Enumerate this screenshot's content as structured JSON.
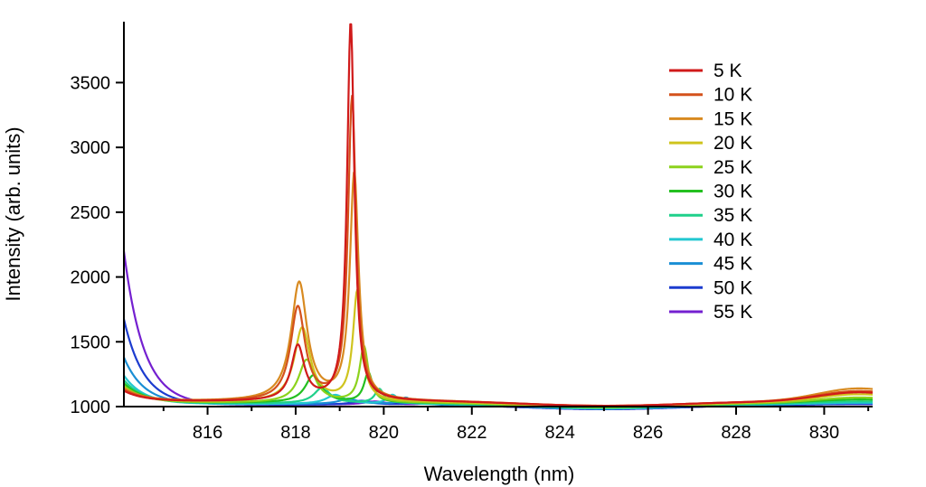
{
  "chart_data": {
    "type": "line",
    "xlabel": "Wavelength (nm)",
    "ylabel": "Intensity (arb. units)",
    "xlim": [
      814.1,
      831.1
    ],
    "ylim": [
      1000,
      3970
    ],
    "xticks": [
      816,
      818,
      820,
      822,
      824,
      826,
      828,
      830
    ],
    "yticks": [
      1000,
      1500,
      2000,
      2500,
      3000,
      3500
    ],
    "grid": false,
    "legend_position": "top-right",
    "series": [
      {
        "name": "5 K",
        "color": "#d01a1a",
        "baseline": 1040,
        "rise_amp": 80,
        "peak1": {
          "x": 818.05,
          "amp": 420,
          "w": 0.18
        },
        "peak2": {
          "x": 819.25,
          "amp": 2930,
          "w": 0.1
        },
        "tail_amp": 70
      },
      {
        "name": "10 K",
        "color": "#d4521c",
        "baseline": 1040,
        "rise_amp": 90,
        "peak1": {
          "x": 818.05,
          "amp": 720,
          "w": 0.2
        },
        "peak2": {
          "x": 819.28,
          "amp": 2340,
          "w": 0.11
        },
        "tail_amp": 80
      },
      {
        "name": "15 K",
        "color": "#d88a20",
        "baseline": 1040,
        "rise_amp": 100,
        "peak1": {
          "x": 818.08,
          "amp": 910,
          "w": 0.22
        },
        "peak2": {
          "x": 819.33,
          "amp": 1750,
          "w": 0.12
        },
        "tail_amp": 100
      },
      {
        "name": "20 K",
        "color": "#cfc41e",
        "baseline": 1035,
        "rise_amp": 110,
        "peak1": {
          "x": 818.15,
          "amp": 570,
          "w": 0.22
        },
        "peak2": {
          "x": 819.4,
          "amp": 850,
          "w": 0.12
        },
        "tail_amp": 60
      },
      {
        "name": "25 K",
        "color": "#8cd21c",
        "baseline": 1030,
        "rise_amp": 130,
        "peak1": {
          "x": 818.25,
          "amp": 330,
          "w": 0.22
        },
        "peak2": {
          "x": 819.55,
          "amp": 430,
          "w": 0.12
        },
        "tail_amp": 40
      },
      {
        "name": "30 K",
        "color": "#24c020",
        "baseline": 1030,
        "rise_amp": 150,
        "peak1": {
          "x": 818.4,
          "amp": 210,
          "w": 0.22
        },
        "peak2": {
          "x": 819.65,
          "amp": 230,
          "w": 0.12
        },
        "tail_amp": 25
      },
      {
        "name": "35 K",
        "color": "#1fd08a",
        "baseline": 1025,
        "rise_amp": 180,
        "peak1": {
          "x": 818.6,
          "amp": 120,
          "w": 0.22
        },
        "peak2": {
          "x": 819.9,
          "amp": 110,
          "w": 0.12
        },
        "tail_amp": 15
      },
      {
        "name": "40 K",
        "color": "#22c8d0",
        "baseline": 1020,
        "rise_amp": 220,
        "peak1": {
          "x": 818.9,
          "amp": 70,
          "w": 0.25
        },
        "peak2": {
          "x": 820.2,
          "amp": 70,
          "w": 0.15
        },
        "tail_amp": 10
      },
      {
        "name": "45 K",
        "color": "#1a8ed4",
        "baseline": 1020,
        "rise_amp": 360,
        "peak1": {
          "x": 819.2,
          "amp": 40,
          "w": 0.25
        },
        "peak2": {
          "x": 820.5,
          "amp": 50,
          "w": 0.15
        },
        "tail_amp": 8
      },
      {
        "name": "50 K",
        "color": "#1c3ccf",
        "baseline": 1015,
        "rise_amp": 660,
        "peak1": {
          "x": 819.5,
          "amp": 30,
          "w": 0.25
        },
        "peak2": {
          "x": 820.8,
          "amp": 40,
          "w": 0.15
        },
        "tail_amp": 5
      },
      {
        "name": "55 K",
        "color": "#7420d0",
        "baseline": 1015,
        "rise_amp": 1185,
        "peak1": {
          "x": 819.8,
          "amp": 25,
          "w": 0.3
        },
        "peak2": {
          "x": 821.1,
          "amp": 30,
          "w": 0.15
        },
        "tail_amp": 5
      }
    ]
  }
}
